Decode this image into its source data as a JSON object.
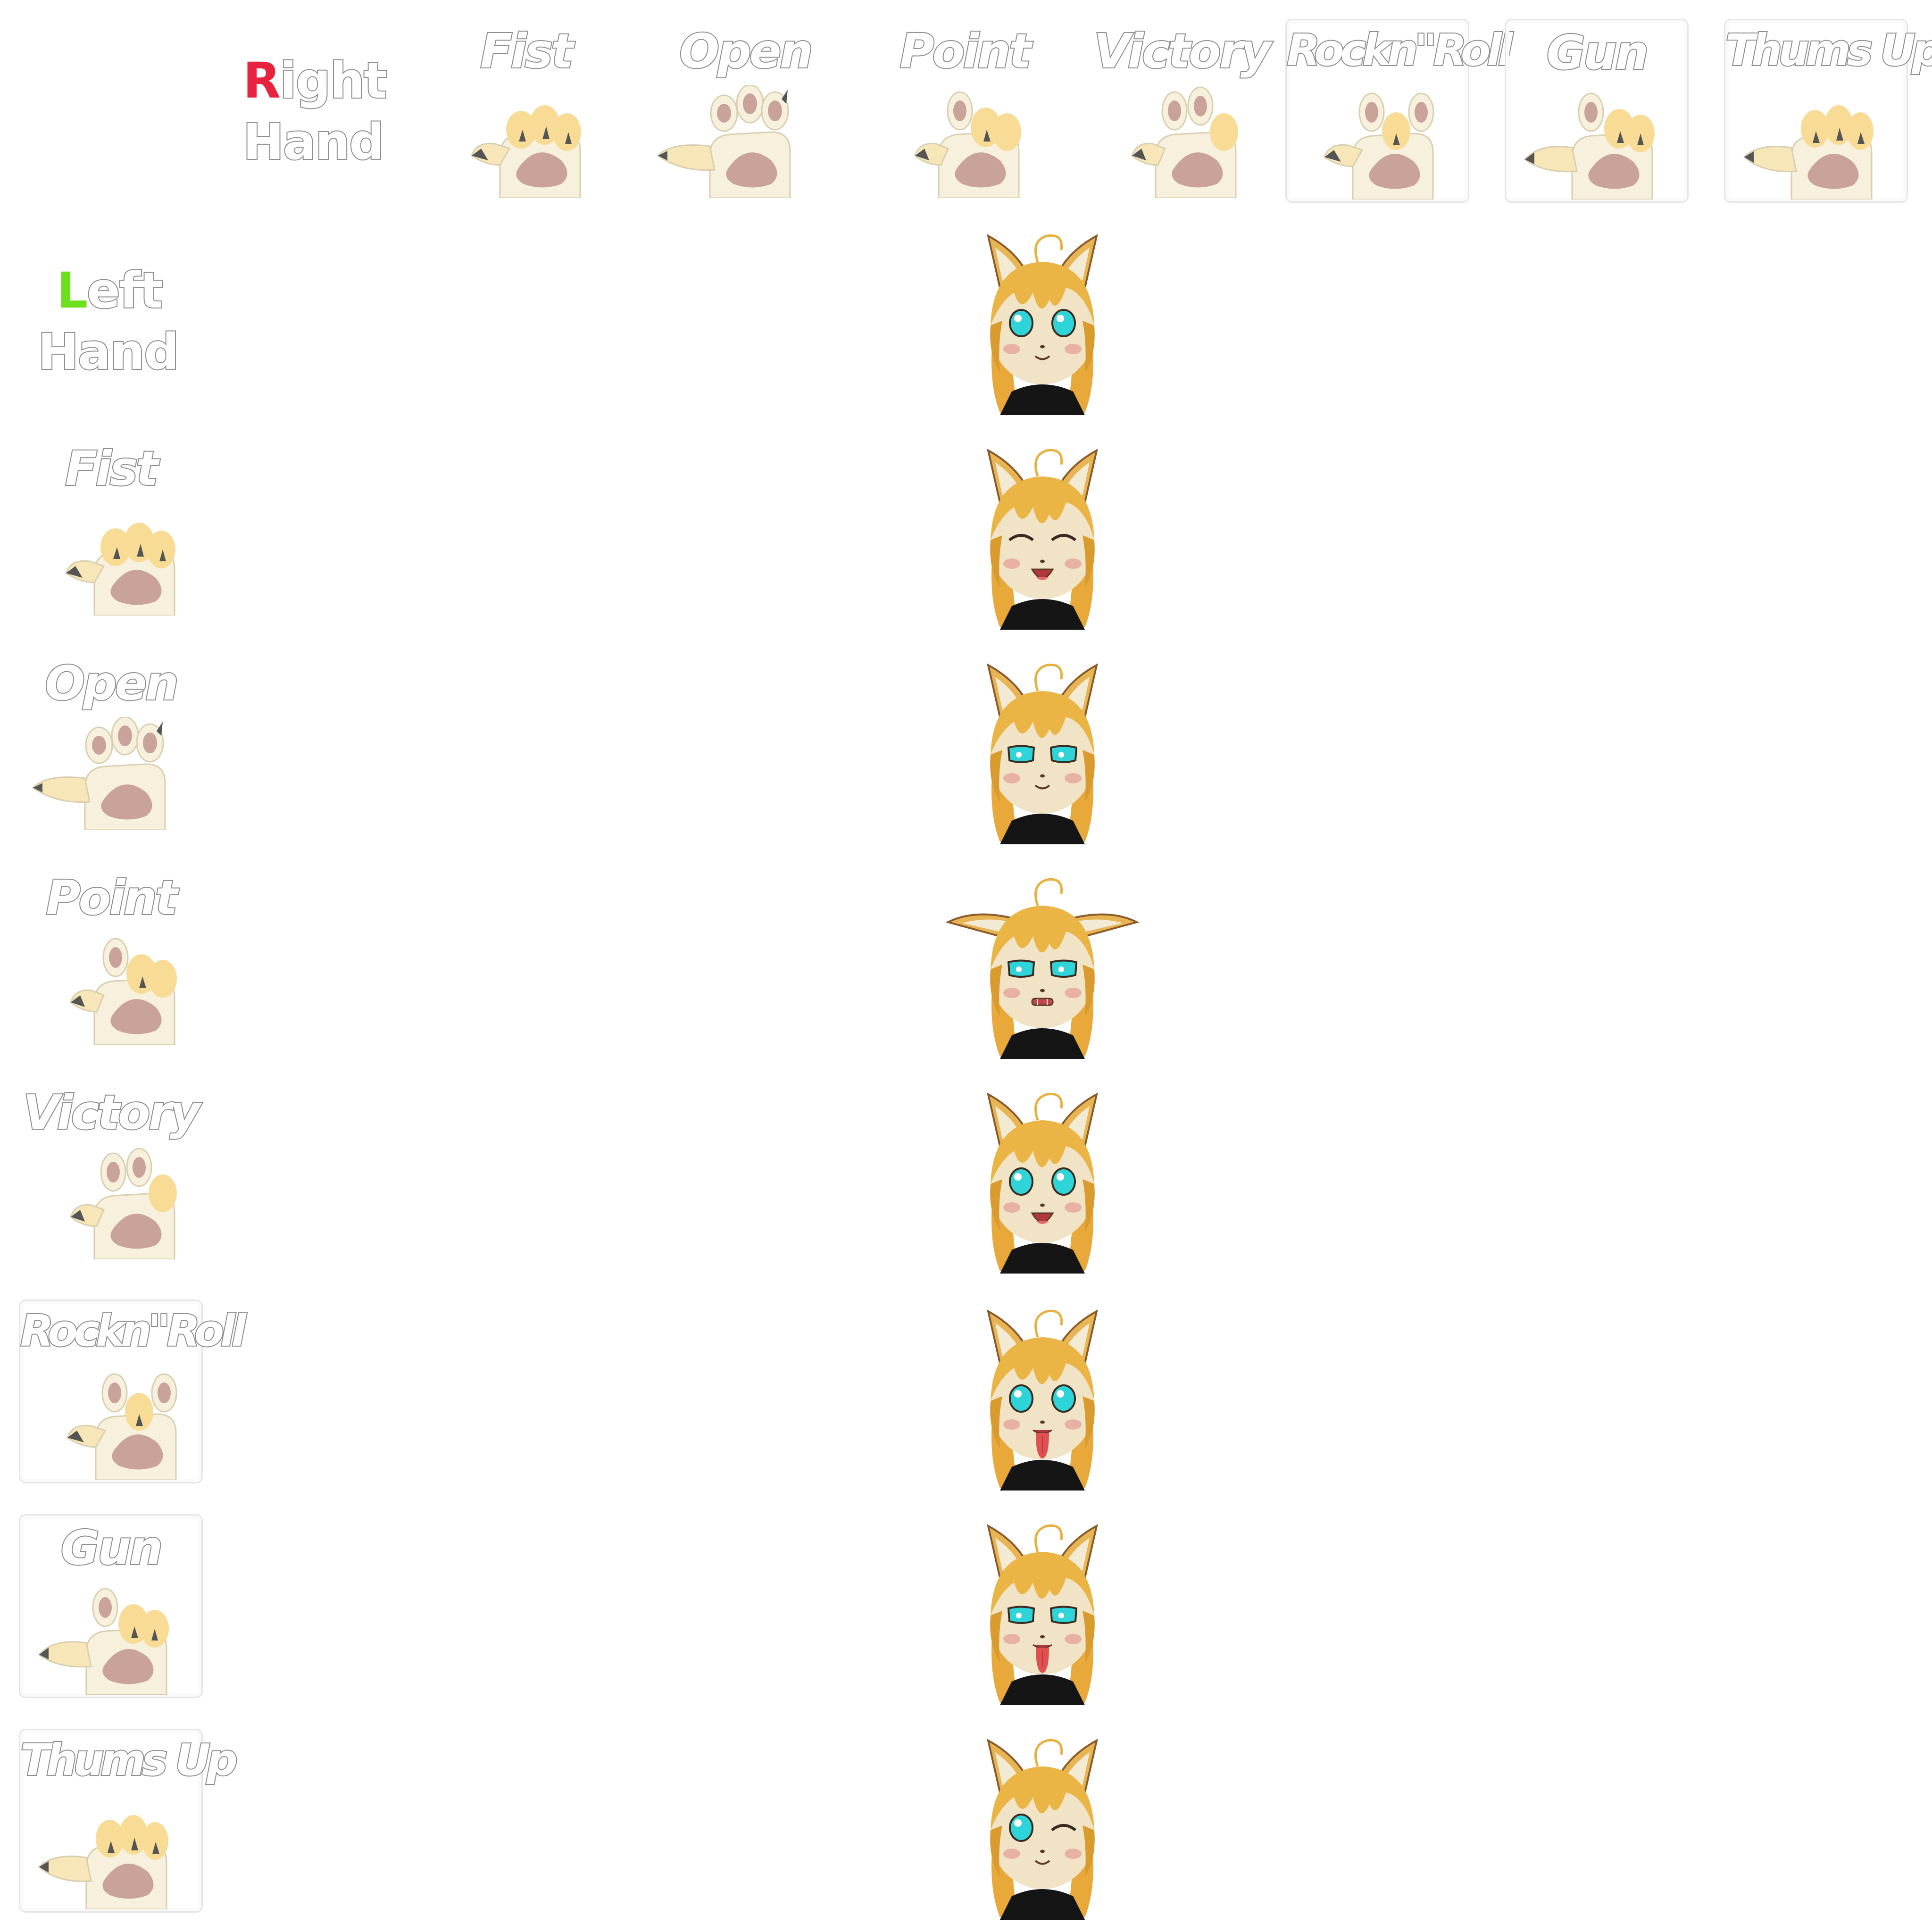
{
  "header": {
    "right_label": {
      "first": "R",
      "rest": "ight",
      "line2": "Hand"
    },
    "left_label": {
      "first": "L",
      "rest": "eft",
      "line2": "Hand"
    },
    "colors": {
      "right_accent": "#e8233f",
      "left_accent": "#6de01e",
      "outline": "#8e8e8e"
    }
  },
  "columns": [
    "Fist",
    "Open",
    "Point",
    "Victory",
    "Rockn\"Roll",
    "Gun",
    "Thums Up"
  ],
  "rows": [
    "Fist",
    "Open",
    "Point",
    "Victory",
    "Rockn\"Roll",
    "Gun",
    "Thums Up"
  ],
  "icons": {
    "fist": "paw-fist-icon",
    "open": "paw-open-icon",
    "point": "paw-point-icon",
    "victory": "paw-victory-icon",
    "rocknroll": "paw-rocknroll-icon",
    "gun": "paw-gun-icon",
    "thumbsup": "paw-thumbsup-icon"
  },
  "expressions": [
    "neutral",
    "happy-closed-eyes",
    "smug",
    "grimace-ears-out",
    "tongue-open",
    "tongue-out",
    "tongue-smug",
    "wink"
  ]
}
